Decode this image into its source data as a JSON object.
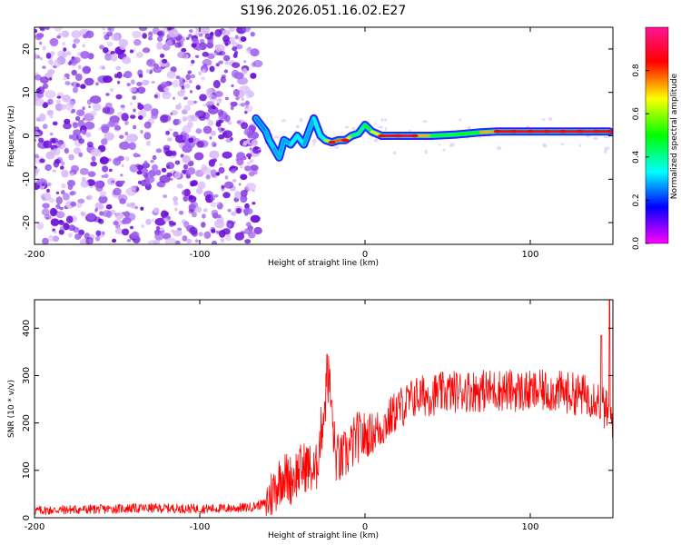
{
  "title": "S196.2026.051.16.02.E27",
  "chart_data": [
    {
      "type": "heatmap",
      "xlabel": "Height of straight line (km)",
      "ylabel": "Frequency (Hz)",
      "xlim": [
        -200,
        150
      ],
      "ylim": [
        -25,
        25
      ],
      "xticks": [
        -200,
        -100,
        0,
        100
      ],
      "xtick_labels": [
        "-200",
        "-100",
        "0",
        "100"
      ],
      "yticks": [
        -20,
        -10,
        0,
        10,
        20
      ],
      "ytick_labels": [
        "-20",
        "-10",
        "0",
        "10",
        "20"
      ],
      "colorbar": {
        "label": "Normalized spectral amplitude",
        "range": [
          0.0,
          1.0
        ],
        "ticks": [
          0.0,
          0.2,
          0.4,
          0.6,
          0.8
        ],
        "tick_labels": [
          "0.0",
          "0.2",
          "0.4",
          "0.6",
          "0.8"
        ],
        "colors": [
          "#ff00ff",
          "#0000ff",
          "#00ffff",
          "#00ff00",
          "#ffff00",
          "#ff0000",
          "#ff1493"
        ]
      },
      "noise_region_x": [
        -200,
        -68
      ],
      "signal_track": [
        {
          "x": -66,
          "y": 4,
          "v": 0.2
        },
        {
          "x": -64,
          "y": 3,
          "v": 0.3
        },
        {
          "x": -60,
          "y": 1,
          "v": 0.2
        },
        {
          "x": -58,
          "y": -1,
          "v": 0.35
        },
        {
          "x": -55,
          "y": -3,
          "v": 0.25
        },
        {
          "x": -52,
          "y": -5,
          "v": 0.3
        },
        {
          "x": -49,
          "y": -1,
          "v": 0.25
        },
        {
          "x": -45,
          "y": -2,
          "v": 0.3
        },
        {
          "x": -41,
          "y": 0,
          "v": 0.35
        },
        {
          "x": -37,
          "y": -2,
          "v": 0.3
        },
        {
          "x": -34,
          "y": 1,
          "v": 0.25
        },
        {
          "x": -31,
          "y": 4,
          "v": 0.3
        },
        {
          "x": -29,
          "y": 2,
          "v": 0.35
        },
        {
          "x": -27,
          "y": 0,
          "v": 0.3
        },
        {
          "x": -24,
          "y": -1,
          "v": 0.4
        },
        {
          "x": -20,
          "y": -1.5,
          "v": 0.85
        },
        {
          "x": -16,
          "y": -1,
          "v": 0.7
        },
        {
          "x": -12,
          "y": -1,
          "v": 0.85
        },
        {
          "x": -8,
          "y": 0,
          "v": 0.45
        },
        {
          "x": -4,
          "y": 0.5,
          "v": 0.4
        },
        {
          "x": 0,
          "y": 2.5,
          "v": 0.45
        },
        {
          "x": 4,
          "y": 1,
          "v": 0.5
        },
        {
          "x": 10,
          "y": 0,
          "v": 0.85
        },
        {
          "x": 20,
          "y": 0,
          "v": 0.9
        },
        {
          "x": 30,
          "y": 0,
          "v": 0.9
        },
        {
          "x": 40,
          "y": 0,
          "v": 0.55
        },
        {
          "x": 55,
          "y": 0.3,
          "v": 0.4
        },
        {
          "x": 70,
          "y": 0.8,
          "v": 0.6
        },
        {
          "x": 80,
          "y": 1,
          "v": 0.85
        },
        {
          "x": 90,
          "y": 1,
          "v": 0.85
        },
        {
          "x": 100,
          "y": 1,
          "v": 0.9
        },
        {
          "x": 110,
          "y": 1,
          "v": 0.85
        },
        {
          "x": 120,
          "y": 1,
          "v": 0.9
        },
        {
          "x": 130,
          "y": 1,
          "v": 0.85
        },
        {
          "x": 140,
          "y": 1,
          "v": 0.9
        },
        {
          "x": 148,
          "y": 1,
          "v": 0.8
        }
      ]
    },
    {
      "type": "line",
      "xlabel": "Height of straight line (km)",
      "ylabel": "SNR (10 * v/v)",
      "xlim": [
        -200,
        150
      ],
      "ylim": [
        0,
        460
      ],
      "xticks": [
        -200,
        -100,
        0,
        100
      ],
      "xtick_labels": [
        "-200",
        "-100",
        "0",
        "100"
      ],
      "yticks": [
        0,
        100,
        200,
        300,
        400
      ],
      "ytick_labels": [
        "0",
        "100",
        "200",
        "300",
        "400"
      ],
      "color": "#ff0000",
      "series": [
        {
          "name": "SNR",
          "x": [
            -200,
            -180,
            -160,
            -140,
            -120,
            -100,
            -80,
            -70,
            -60,
            -55,
            -50,
            -45,
            -40,
            -35,
            -30,
            -27,
            -24,
            -22,
            -20,
            -18,
            -15,
            -10,
            -5,
            0,
            5,
            10,
            15,
            20,
            25,
            30,
            40,
            50,
            60,
            70,
            80,
            90,
            100,
            110,
            120,
            130,
            140,
            145,
            150
          ],
          "y": [
            15,
            17,
            18,
            20,
            20,
            19,
            20,
            22,
            30,
            60,
            90,
            80,
            100,
            110,
            90,
            170,
            250,
            300,
            220,
            130,
            120,
            140,
            170,
            170,
            180,
            190,
            210,
            230,
            240,
            255,
            260,
            265,
            268,
            268,
            270,
            268,
            265,
            268,
            265,
            260,
            255,
            230,
            210
          ]
        }
      ],
      "peaks": [
        {
          "x": -23,
          "y": 345
        },
        {
          "x": 148,
          "y": 460
        },
        {
          "x": 143,
          "y": 385
        }
      ]
    }
  ]
}
